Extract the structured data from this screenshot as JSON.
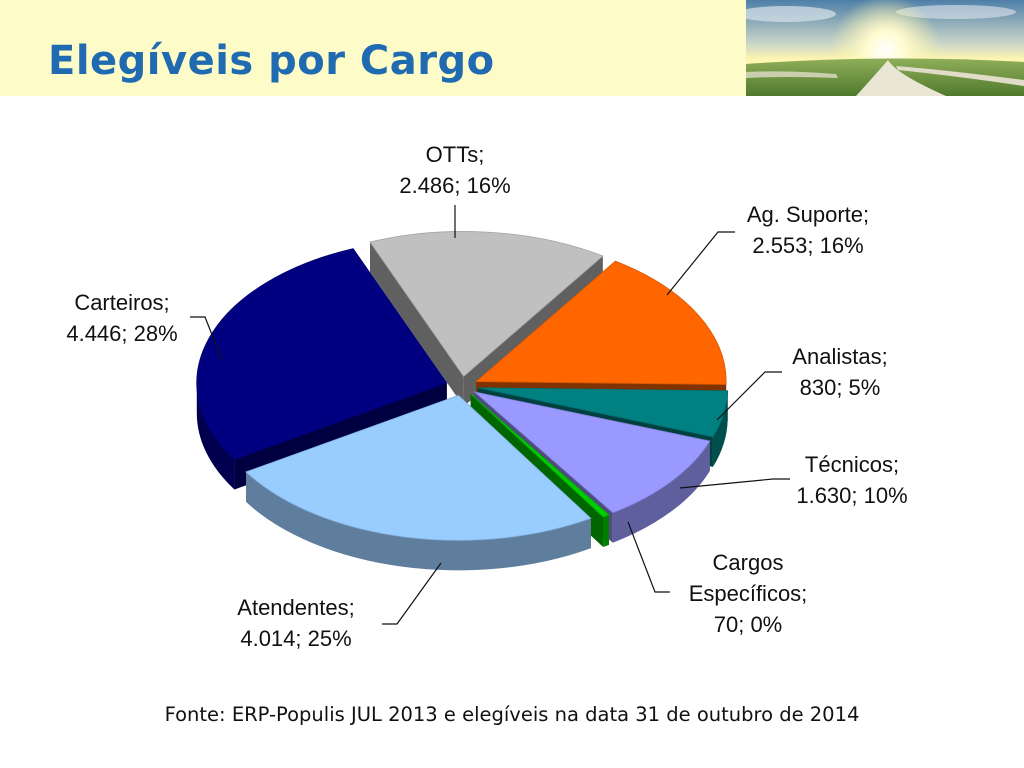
{
  "slide": {
    "title": "Elegíveis por Cargo",
    "source": "Fonte: ERP-Populis JUL 2013 e elegíveis na data 31 de outubro de 2014"
  },
  "chart_data": {
    "type": "pie",
    "title": "",
    "slices": [
      {
        "name": "OTTs",
        "value": 2486,
        "percent": 16,
        "color": "#c0c0c0",
        "label": [
          "OTTs;",
          "2.486; 16%"
        ]
      },
      {
        "name": "Ag. Suporte",
        "value": 2553,
        "percent": 16,
        "color": "#ff6600",
        "label": [
          "Ag. Suporte;",
          "2.553; 16%"
        ]
      },
      {
        "name": "Analistas",
        "value": 830,
        "percent": 5,
        "color": "#008080",
        "label": [
          "Analistas;",
          "830; 5%"
        ]
      },
      {
        "name": "Técnicos",
        "value": 1630,
        "percent": 10,
        "color": "#9999ff",
        "label": [
          "Técnicos;",
          "1.630; 10%"
        ]
      },
      {
        "name": "Cargos Específicos",
        "value": 70,
        "percent": 0,
        "color": "#00cc00",
        "label": [
          "Cargos",
          "Específicos;",
          "70; 0%"
        ]
      },
      {
        "name": "Atendentes",
        "value": 4014,
        "percent": 25,
        "color": "#99ccff",
        "label": [
          "Atendentes;",
          "4.014; 25%"
        ]
      },
      {
        "name": "Carteiros",
        "value": 4446,
        "percent": 28,
        "color": "#000080",
        "label": [
          "Carteiros;",
          "4.446; 28%"
        ]
      }
    ],
    "style": "3d-exploded",
    "legend": "none"
  }
}
